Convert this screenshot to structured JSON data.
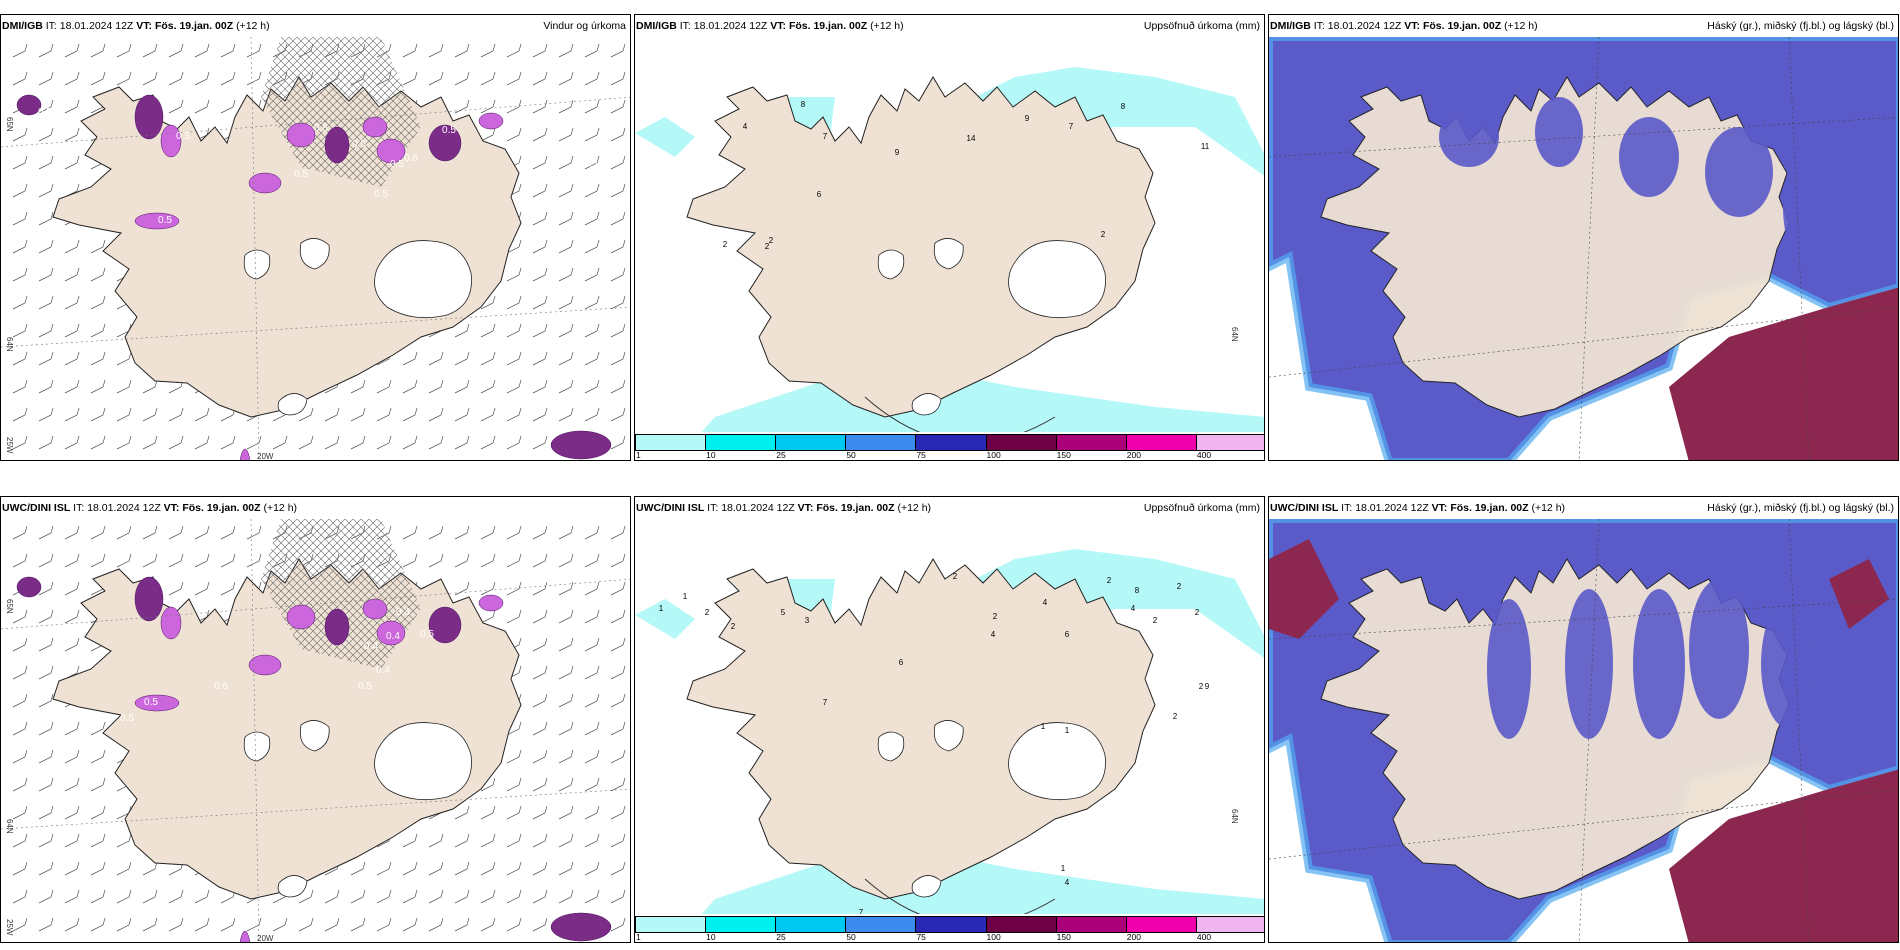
{
  "panels": [
    {
      "source": "DMI/IGB",
      "issued_label": "IT:",
      "issued": "18.01.2024 12Z",
      "valid_label": "VT:",
      "valid": "Fös. 19.jan. 00Z",
      "lead": "(+12 h)",
      "title": "Vindur og úrkoma",
      "map": "wind-precip",
      "labels": [
        "0.5",
        "0.5",
        "0.5",
        "0.5",
        "0.5",
        "0.5",
        "0.6",
        "0.5",
        "0.5",
        "0.5",
        "0.5"
      ],
      "lon_label": "20W",
      "lat_labels": [
        "65N",
        "64N",
        "25W"
      ]
    },
    {
      "source": "DMI/IGB",
      "issued_label": "IT:",
      "issued": "18.01.2024 12Z",
      "valid_label": "VT:",
      "valid": "Fös. 19.jan. 00Z",
      "lead": "(+12 h)",
      "title": "Uppsöfnuð úrkoma (mm)",
      "map": "accum-precip",
      "labels": [
        "8",
        "4",
        "7",
        "6",
        "2",
        "9",
        "14",
        "9",
        "7",
        "8",
        "11",
        "2",
        "2",
        "2"
      ],
      "lat_labels": [
        "64N"
      ]
    },
    {
      "source": "DMI/IGB",
      "issued_label": "IT:",
      "issued": "18.01.2024 12Z",
      "valid_label": "VT:",
      "valid": "Fös. 19.jan. 00Z",
      "lead": "(+12 h)",
      "title": "Háský (gr.), miðský (fj.bl.) og lágský (bl.)",
      "map": "clouds"
    },
    {
      "source": "UWC/DINI ISL",
      "issued_label": "IT:",
      "issued": "18.01.2024 12Z",
      "valid_label": "VT:",
      "valid": "Fös. 19.jan. 00Z",
      "lead": "(+12 h)",
      "title": "",
      "map": "wind-precip",
      "labels": [
        "0.4",
        "0.5",
        "0.4",
        "0.4",
        "0.4",
        "0.5",
        "0.6",
        "0.5",
        "0.5"
      ],
      "lon_label": "20W",
      "lat_labels": [
        "65N",
        "64N",
        "25W"
      ]
    },
    {
      "source": "UWC/DINI ISL",
      "issued_label": "IT:",
      "issued": "18.01.2024 12Z",
      "valid_label": "VT:",
      "valid": "Fös. 19.jan. 00Z",
      "lead": "(+12 h)",
      "title": "Uppsöfnuð úrkoma (mm)",
      "map": "accum-precip",
      "labels": [
        "1",
        "1",
        "2",
        "2",
        "5",
        "3",
        "7",
        "2",
        "6",
        "2",
        "4",
        "4",
        "6",
        "4",
        "2",
        "8",
        "2",
        "2",
        "2",
        "9",
        "2",
        "1",
        "1",
        "2",
        "1",
        "4",
        "7"
      ],
      "lat_labels": [
        "64N"
      ]
    },
    {
      "source": "UWC/DINI ISL",
      "issued_label": "IT:",
      "issued": "18.01.2024 12Z",
      "valid_label": "VT:",
      "valid": "Fös. 19.jan. 00Z",
      "lead": "(+12 h)",
      "title": "Háský (gr.), miðský (fj.bl.) og lágský (bl.)",
      "map": "clouds"
    }
  ],
  "colorbar": {
    "ticks": [
      "1",
      "10",
      "25",
      "50",
      "75",
      "100",
      "150",
      "200",
      "400"
    ],
    "colors": [
      "#b4f8f8",
      "#00f0f0",
      "#00c8f0",
      "#3c8cf0",
      "#2828b4",
      "#6e0046",
      "#aa0078",
      "#f000aa",
      "#f0b4f0"
    ]
  },
  "colors": {
    "land": "#efe2d4",
    "glacier": "#ffffff",
    "precip_light": "#cc66dd",
    "precip_heavy": "#7a2c86",
    "accum_light": "#b4f8f8",
    "cloud_low": "#5a5ac8",
    "cloud_mid": "#3c78f0",
    "cloud_high": "#8c2850",
    "cloud_edge": "#50aaf0"
  }
}
